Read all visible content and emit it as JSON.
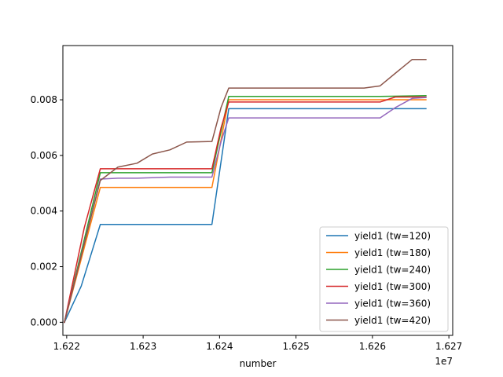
{
  "chart_data": {
    "type": "line",
    "title": "",
    "xlabel": "number",
    "ylabel": "",
    "x_offset_label": "1e7",
    "xlim": [
      16219500,
      16270500
    ],
    "ylim": [
      -0.00047,
      0.00995
    ],
    "x_ticks": [
      {
        "value": 16220000,
        "label": "1.622"
      },
      {
        "value": 16230000,
        "label": "1.623"
      },
      {
        "value": 16240000,
        "label": "1.624"
      },
      {
        "value": 16250000,
        "label": "1.625"
      },
      {
        "value": 16260000,
        "label": "1.626"
      },
      {
        "value": 16270000,
        "label": "1.627"
      }
    ],
    "y_ticks": [
      {
        "value": 0.0,
        "label": "0.000"
      },
      {
        "value": 0.002,
        "label": "0.002"
      },
      {
        "value": 0.004,
        "label": "0.004"
      },
      {
        "value": 0.006,
        "label": "0.006"
      },
      {
        "value": 0.008,
        "label": "0.008"
      }
    ],
    "grid": false,
    "legend_position": "lower right",
    "series": [
      {
        "name": "yield1 (tw=120)",
        "color": "#1f77b4",
        "x": [
          16219700,
          16221900,
          16224400,
          16239000,
          16241200,
          16267000
        ],
        "y": [
          0.0,
          0.0013,
          0.00352,
          0.00352,
          0.00768,
          0.00768
        ]
      },
      {
        "name": "yield1 (tw=180)",
        "color": "#ff7f0e",
        "x": [
          16219700,
          16224400,
          16239000,
          16241200,
          16267000
        ],
        "y": [
          0.0,
          0.00485,
          0.00485,
          0.008,
          0.008
        ]
      },
      {
        "name": "yield1 (tw=240)",
        "color": "#2ca02c",
        "x": [
          16219700,
          16224400,
          16239000,
          16241200,
          16261000,
          16267000
        ],
        "y": [
          0.0,
          0.00538,
          0.00538,
          0.00812,
          0.00812,
          0.00815
        ]
      },
      {
        "name": "yield1 (tw=300)",
        "color": "#d62728",
        "x": [
          16219700,
          16222300,
          16224400,
          16239000,
          16240200,
          16241200,
          16261000,
          16263000,
          16267000
        ],
        "y": [
          0.0,
          0.0034,
          0.00552,
          0.00552,
          0.007,
          0.00792,
          0.00792,
          0.0081,
          0.0081
        ]
      },
      {
        "name": "yield1 (tw=360)",
        "color": "#9467bd",
        "x": [
          16219700,
          16224400,
          16226700,
          16229200,
          16233500,
          16239000,
          16240200,
          16241200,
          16261000,
          16263000,
          16265200,
          16267000
        ],
        "y": [
          0.0,
          0.00515,
          0.00518,
          0.00518,
          0.00522,
          0.00522,
          0.0065,
          0.00735,
          0.00735,
          0.00772,
          0.00805,
          0.00808
        ]
      },
      {
        "name": "yield1 (tw=420)",
        "color": "#8c564b",
        "x": [
          16219700,
          16224400,
          16226700,
          16229200,
          16231200,
          16233500,
          16235700,
          16239000,
          16240200,
          16241200,
          16258900,
          16261000,
          16263200,
          16265200,
          16267000
        ],
        "y": [
          0.0,
          0.0051,
          0.00558,
          0.00572,
          0.00605,
          0.0062,
          0.00648,
          0.0065,
          0.00773,
          0.00842,
          0.00842,
          0.0085,
          0.009,
          0.00945,
          0.00945
        ]
      }
    ]
  }
}
